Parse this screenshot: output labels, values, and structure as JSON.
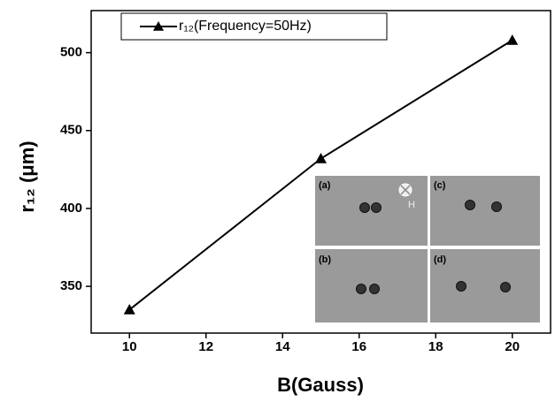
{
  "chart_data": {
    "type": "line",
    "x_label": "B(Gauss)",
    "y_label": "r₁₂ (μm)",
    "series": [
      {
        "name": "r₁₂(Frequency=50Hz)",
        "color": "#000000",
        "x": [
          10,
          15,
          20
        ],
        "values": [
          335,
          432,
          508
        ]
      }
    ],
    "xlim": [
      9,
      21
    ],
    "xticks": [
      10,
      12,
      14,
      16,
      18,
      20
    ],
    "ylim": [
      320,
      527
    ],
    "yticks": [
      350,
      400,
      450,
      500
    ],
    "grid": false,
    "legend": "top-left",
    "inset_labels": [
      "(a)",
      "(c)",
      "(b)",
      "(d)"
    ],
    "inset_field": "H"
  }
}
